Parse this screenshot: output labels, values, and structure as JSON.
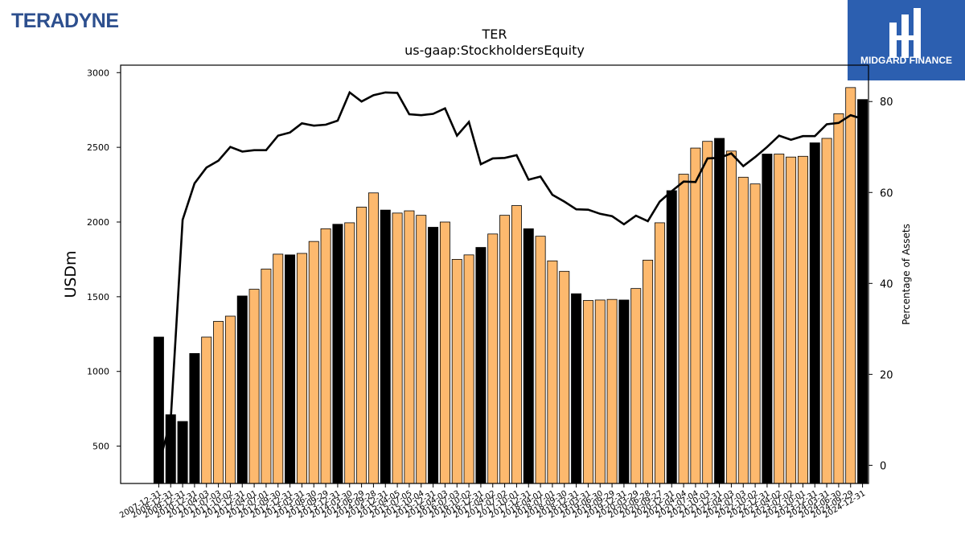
{
  "branding": {
    "left_logo": "TERADYNE",
    "right_logo": "MIDGARD FINANCE",
    "brand_color": "#2c5fb0"
  },
  "chart_data": {
    "type": "bar",
    "title": "TER",
    "subtitle": "us-gaap:StockholdersEquity",
    "ylabel": "USDm",
    "y2label": "Percentage of Assets",
    "ylim": [
      250,
      3050
    ],
    "y2lim": [
      -4,
      88
    ],
    "yticks": [
      500,
      1000,
      1500,
      2000,
      2500,
      3000
    ],
    "y2ticks": [
      0,
      20,
      40,
      60,
      80
    ],
    "bar_colors": {
      "annual": "#000000",
      "quarterly": "#fdb96e"
    },
    "line_color": "#000000",
    "categories": [
      "2007-12-31",
      "2008-12-31",
      "2009-12-31",
      "2010-12-31",
      "2011-04-03",
      "2011-07-03",
      "2011-10-02",
      "2011-12-31",
      "2012-04-01",
      "2012-07-01",
      "2012-09-30",
      "2012-12-31",
      "2013-03-31",
      "2013-06-30",
      "2013-09-29",
      "2013-12-31",
      "2014-03-30",
      "2014-06-29",
      "2014-09-28",
      "2014-12-31",
      "2015-04-05",
      "2015-07-05",
      "2015-10-04",
      "2015-12-31",
      "2016-04-03",
      "2016-07-03",
      "2016-10-02",
      "2016-12-31",
      "2017-04-02",
      "2017-07-02",
      "2017-10-01",
      "2017-12-31",
      "2018-04-01",
      "2018-07-01",
      "2018-09-30",
      "2018-12-31",
      "2019-03-31",
      "2019-06-30",
      "2019-09-29",
      "2019-12-31",
      "2020-03-29",
      "2020-06-28",
      "2020-09-27",
      "2020-12-31",
      "2021-04-04",
      "2021-07-04",
      "2021-10-03",
      "2021-12-31",
      "2022-04-03",
      "2022-07-03",
      "2022-10-02",
      "2022-12-31",
      "2023-04-02",
      "2023-07-02",
      "2023-10-01",
      "2023-12-31",
      "2024-03-31",
      "2024-06-30",
      "2024-09-29",
      "2024-12-31"
    ],
    "xtick_labels": [
      "2007-12-31",
      "2008-12-31",
      "2009-12-31",
      "2010-12-31",
      "2011-04-03",
      "2011-07-03",
      "2011-10-02",
      "2011-12-31",
      "2012-04-01",
      "2012-07-01",
      "2012-09-30",
      "2012-12-31",
      "2013-03-31",
      "2013-06-30",
      "2013-09-29",
      "2013-12-31",
      "2014-03-30",
      "2014-06-29",
      "2014-09-28",
      "2014-12-31",
      "2015-04-05",
      "2015-07-05",
      "2015-10-04",
      "2015-12-31",
      "2016-04-03",
      "2016-07-03",
      "2016-10-02",
      "2016-12-31",
      "2017-04-02",
      "2017-07-02",
      "2017-10-01",
      "2017-12-31",
      "2018-04-01",
      "2018-07-01",
      "2018-09-30",
      "2018-12-31",
      "2019-03-31",
      "2019-06-30",
      "2019-09-29",
      "2019-12-31",
      "2020-03-29",
      "2020-06-28",
      "2020-09-27",
      "2020-12-31",
      "2021-04-04",
      "2021-07-04",
      "2021-10-03",
      "2021-12-31",
      "2022-04-03",
      "2022-07-03",
      "2022-10-02",
      "2022-12-31",
      "2023-04-02",
      "2023-07-02",
      "2023-10-01",
      "2023-12-31",
      "2024-03-31",
      "2024-06-30",
      "2024-09-29",
      "2024-12-31"
    ],
    "bar_kind": [
      "annual",
      "annual",
      "annual",
      "annual",
      "quarterly",
      "quarterly",
      "quarterly",
      "annual",
      "quarterly",
      "quarterly",
      "quarterly",
      "annual",
      "quarterly",
      "quarterly",
      "quarterly",
      "annual",
      "quarterly",
      "quarterly",
      "quarterly",
      "annual",
      "quarterly",
      "quarterly",
      "quarterly",
      "annual",
      "quarterly",
      "quarterly",
      "quarterly",
      "annual",
      "quarterly",
      "quarterly",
      "quarterly",
      "annual",
      "quarterly",
      "quarterly",
      "quarterly",
      "annual",
      "quarterly",
      "quarterly",
      "quarterly",
      "annual",
      "quarterly",
      "quarterly",
      "quarterly",
      "annual",
      "quarterly",
      "quarterly",
      "quarterly",
      "annual",
      "quarterly",
      "quarterly",
      "quarterly",
      "annual",
      "quarterly",
      "quarterly",
      "quarterly",
      "annual",
      "quarterly",
      "quarterly",
      "quarterly",
      "annual"
    ],
    "values": [
      1230,
      710,
      665,
      1120,
      1230,
      1335,
      1370,
      1505,
      1550,
      1685,
      1785,
      1780,
      1790,
      1870,
      1955,
      1985,
      1995,
      2100,
      2195,
      2080,
      2060,
      2075,
      2045,
      1965,
      2000,
      1750,
      1780,
      1830,
      1920,
      2045,
      2110,
      1955,
      1905,
      1740,
      1670,
      1520,
      1475,
      1478,
      1482,
      1478,
      1555,
      1745,
      1995,
      2210,
      2320,
      2495,
      2540,
      2560,
      2475,
      2300,
      2255,
      2455,
      2455,
      2435,
      2440,
      2530,
      2560,
      2725,
      2900,
      2820
    ],
    "pct_of_assets": [
      0,
      10,
      54,
      62,
      65.5,
      67,
      70,
      69,
      69.3,
      69.3,
      72.5,
      73.2,
      75.2,
      74.7,
      74.9,
      75.8,
      82,
      80,
      81.4,
      82,
      81.9,
      77.2,
      77,
      77.3,
      78.5,
      72.5,
      75.5,
      66.2,
      67.5,
      67.6,
      68.2,
      62.8,
      63.5,
      59.5,
      58,
      56.3,
      56.2,
      55.3,
      54.8,
      53,
      54.9,
      53.7,
      58,
      60.3,
      62.4,
      62.3,
      67.5,
      67.6,
      68.6,
      65.8,
      67.8,
      70,
      72.5,
      71.6,
      72.4,
      72.4,
      75,
      75.3,
      77,
      76.2
    ]
  }
}
